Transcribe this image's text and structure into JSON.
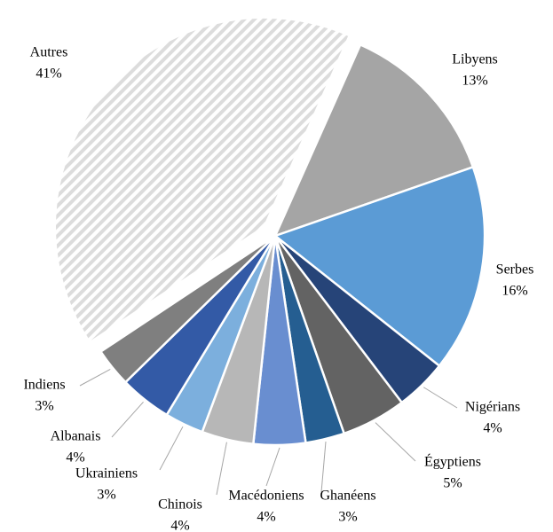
{
  "chart_data": {
    "type": "pie",
    "labels": [
      "Libyens",
      "Serbes",
      "Nigérians",
      "Égyptiens",
      "Ghanéens",
      "Macédoniens",
      "Chinois",
      "Ukrainiens",
      "Albanais",
      "Indiens",
      "Autres"
    ],
    "values": [
      13,
      16,
      4,
      5,
      3,
      4,
      4,
      3,
      4,
      3,
      41
    ],
    "value_labels": [
      "13%",
      "16%",
      "4%",
      "5%",
      "3%",
      "4%",
      "4%",
      "3%",
      "4%",
      "3%",
      "41%"
    ],
    "colors": [
      "#a5a5a5",
      "#5b9bd5",
      "#264478",
      "#636363",
      "#255e91",
      "#698ed0",
      "#b7b7b7",
      "#7cafdd",
      "#335aa6",
      "#7f7f7f",
      "url(#hatch)"
    ]
  }
}
